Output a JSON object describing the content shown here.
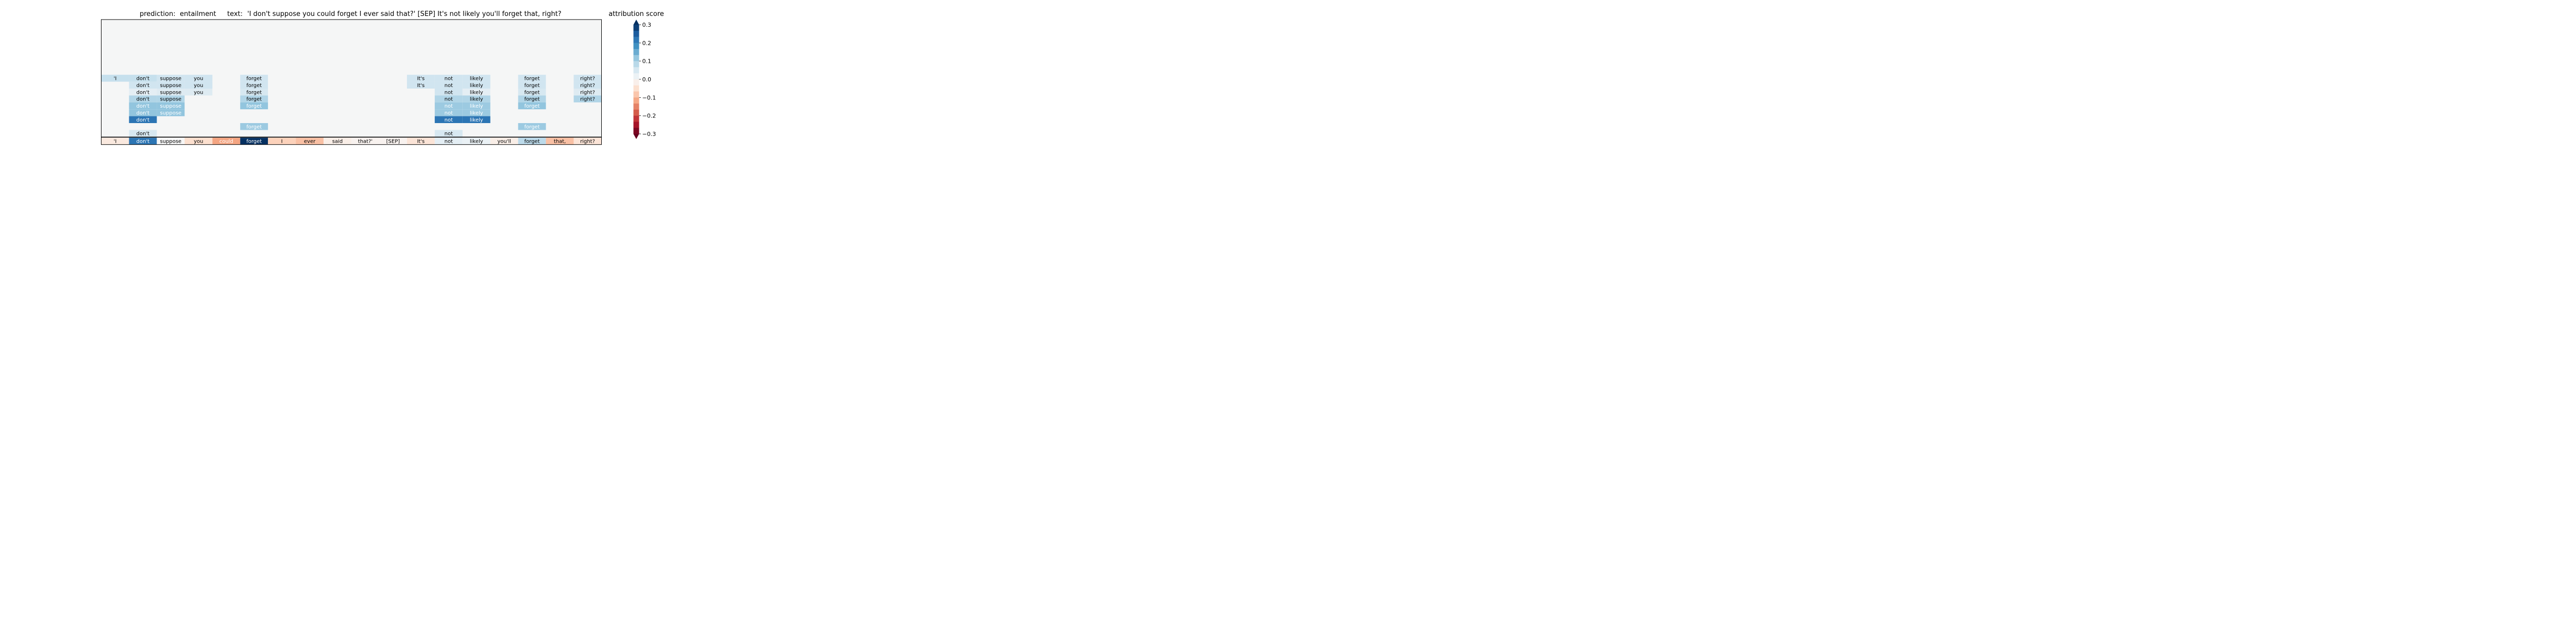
{
  "chart_data": {
    "type": "heatmap",
    "title": {
      "prediction_label": "prediction:",
      "prediction_value": "entailment",
      "text_label": "text:",
      "text_value": "'I don't suppose you could forget I ever said that?' [SEP] It's not likely you'll forget that, right?"
    },
    "tokens": [
      "'I",
      "don't",
      "suppose",
      "you",
      "could",
      "forget",
      "I",
      "ever",
      "said",
      "that?'",
      "[SEP]",
      "It's",
      "not",
      "likely",
      "you'll",
      "forget",
      "that,",
      "right?"
    ],
    "layers": 17,
    "layer_rows": [
      {
        "row": 8,
        "cells": [
          [
            0,
            0.07
          ],
          [
            1,
            0.07
          ],
          [
            2,
            0.06
          ],
          [
            3,
            0.06
          ],
          [
            5,
            0.06
          ],
          [
            11,
            0.06
          ],
          [
            12,
            0.06
          ],
          [
            13,
            0.06
          ],
          [
            15,
            0.06
          ],
          [
            17,
            0.06
          ]
        ]
      },
      {
        "row": 9,
        "cells": [
          [
            1,
            0.06
          ],
          [
            2,
            0.06
          ],
          [
            3,
            0.06
          ],
          [
            5,
            0.06
          ],
          [
            11,
            0.06
          ],
          [
            12,
            0.06
          ],
          [
            13,
            0.06
          ],
          [
            15,
            0.06
          ],
          [
            17,
            0.06
          ]
        ]
      },
      {
        "row": 10,
        "cells": [
          [
            1,
            0.03
          ],
          [
            2,
            0.04
          ],
          [
            3,
            0.04
          ],
          [
            5,
            0.05
          ],
          [
            12,
            0.06
          ],
          [
            13,
            0.03
          ],
          [
            15,
            0.05
          ],
          [
            17,
            0.04
          ]
        ]
      },
      {
        "row": 11,
        "cells": [
          [
            1,
            0.09
          ],
          [
            2,
            0.09
          ],
          [
            5,
            0.09
          ],
          [
            12,
            0.09
          ],
          [
            13,
            0.09
          ],
          [
            15,
            0.09
          ],
          [
            17,
            0.09
          ]
        ]
      },
      {
        "row": 12,
        "cells": [
          [
            1,
            0.12
          ],
          [
            2,
            0.12
          ],
          [
            5,
            0.12
          ],
          [
            12,
            0.11
          ],
          [
            13,
            0.11
          ],
          [
            15,
            0.12
          ]
        ]
      },
      {
        "row": 13,
        "cells": [
          [
            1,
            0.12
          ],
          [
            2,
            0.12
          ],
          [
            12,
            0.11
          ],
          [
            13,
            0.11
          ]
        ]
      },
      {
        "row": 14,
        "cells": [
          [
            1,
            0.22
          ],
          [
            12,
            0.22
          ],
          [
            13,
            0.22
          ]
        ]
      },
      {
        "row": 15,
        "cells": [
          [
            5,
            0.11
          ],
          [
            15,
            0.11
          ]
        ]
      },
      {
        "row": 16,
        "cells": [
          [
            1,
            0.05
          ],
          [
            12,
            0.05
          ]
        ]
      }
    ],
    "summary_row": [
      -0.03,
      0.22,
      0.0,
      -0.05,
      -0.12,
      0.3,
      -0.07,
      -0.09,
      -0.02,
      -0.01,
      -0.01,
      -0.04,
      0.03,
      0.02,
      -0.02,
      0.08,
      -0.09,
      -0.04
    ],
    "colorbar": {
      "title": "attribution score",
      "range": [
        -0.3,
        0.3
      ],
      "ticks": [
        0.3,
        0.2,
        0.1,
        0.0,
        -0.1,
        -0.2,
        -0.3
      ],
      "tick_labels": [
        "0.3",
        "0.2",
        "0.1",
        "0.0",
        "−0.1",
        "−0.2",
        "−0.3"
      ],
      "colormap": "RdBu",
      "extend": "both"
    },
    "background_color": "#f5f6f6"
  }
}
